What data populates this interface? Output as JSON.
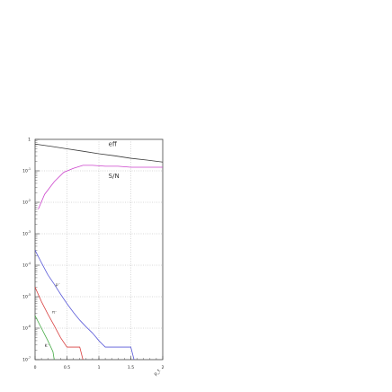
{
  "chart_data": {
    "type": "line",
    "title": "",
    "xlabel": "p_t",
    "ylabel": "",
    "xlim": [
      0,
      2
    ],
    "ylim": [
      1e-07,
      1
    ],
    "yscale": "log",
    "grid": true,
    "x_ticks": [
      "0",
      "0.5",
      "1",
      "1.5",
      "2"
    ],
    "y_ticks": [
      {
        "value": 1,
        "mantissa": "1",
        "exp": ""
      },
      {
        "value": 0.1,
        "mantissa": "10",
        "exp": "-1"
      },
      {
        "value": 0.01,
        "mantissa": "10",
        "exp": "-2"
      },
      {
        "value": 0.001,
        "mantissa": "10",
        "exp": "-3"
      },
      {
        "value": 0.0001,
        "mantissa": "10",
        "exp": "-4"
      },
      {
        "value": 1e-05,
        "mantissa": "10",
        "exp": "-5"
      },
      {
        "value": 1e-06,
        "mantissa": "10",
        "exp": "-6"
      },
      {
        "value": 1e-07,
        "mantissa": "10",
        "exp": "-7"
      }
    ],
    "series": [
      {
        "name": "eff",
        "color": "#3a3a3a",
        "x": [
          0.0,
          0.25,
          0.5,
          0.75,
          1.0,
          1.25,
          1.5,
          1.75,
          2.0
        ],
        "y": [
          0.71,
          0.6,
          0.5,
          0.42,
          0.35,
          0.3,
          0.25,
          0.22,
          0.19
        ],
        "label_pos": [
          1.15,
          0.62
        ]
      },
      {
        "name": "S/N",
        "color": "#cc44cc",
        "x": [
          0.05,
          0.15,
          0.3,
          0.45,
          0.6,
          0.75,
          0.9,
          1.1,
          1.3,
          1.5,
          1.7,
          2.0
        ],
        "y": [
          0.006,
          0.018,
          0.045,
          0.09,
          0.12,
          0.15,
          0.15,
          0.14,
          0.14,
          0.13,
          0.13,
          0.13
        ],
        "label_pos": [
          1.15,
          0.06
        ]
      },
      {
        "name": "p⁻",
        "color": "#5a5ad8",
        "x": [
          0.0,
          0.1,
          0.2,
          0.3,
          0.4,
          0.5,
          0.6,
          0.7,
          0.8,
          0.9,
          1.0,
          1.1,
          1.2,
          1.3,
          1.4,
          1.5,
          1.55
        ],
        "y": [
          0.0003,
          0.00012,
          5e-05,
          2.5e-05,
          1.2e-05,
          6e-06,
          3.2e-06,
          1.8e-06,
          1.1e-06,
          7e-07,
          4e-07,
          2.5e-07,
          2.5e-07,
          2.5e-07,
          2.5e-07,
          2.5e-07,
          1e-07
        ],
        "label_pos": [
          0.32,
          2.2e-05
        ]
      },
      {
        "name": "π⁻",
        "color": "#d84040",
        "x": [
          0.0,
          0.1,
          0.2,
          0.3,
          0.4,
          0.5,
          0.6,
          0.7,
          0.75
        ],
        "y": [
          2e-05,
          7e-06,
          2.8e-06,
          1.2e-06,
          5e-07,
          2.5e-07,
          2.5e-07,
          2.5e-07,
          1e-07
        ],
        "label_pos": [
          0.27,
          3e-06
        ]
      },
      {
        "name": "K⁻",
        "color": "#44aa44",
        "x": [
          0.0,
          0.1,
          0.2,
          0.28,
          0.3
        ],
        "y": [
          2.5e-06,
          1e-06,
          4e-07,
          1.8e-07,
          1e-07
        ],
        "label_pos": [
          0.15,
          2.5e-07
        ]
      }
    ]
  }
}
